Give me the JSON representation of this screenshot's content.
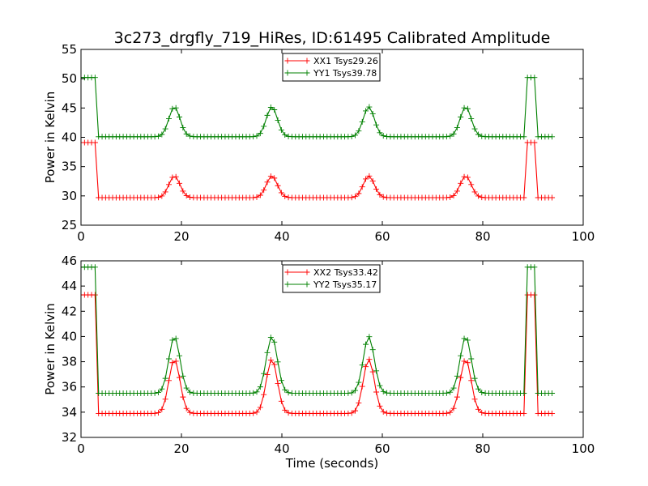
{
  "chart_data": [
    {
      "type": "line",
      "title": "3c273_drgfly_719_HiRes, ID:61495 Calibrated Amplitude",
      "xlabel": "",
      "ylabel": "Power in Kelvin",
      "xlim": [
        0,
        100
      ],
      "ylim": [
        25,
        55
      ],
      "xticks": [
        "0",
        "20",
        "40",
        "60",
        "80",
        "100"
      ],
      "yticks": [
        "25",
        "30",
        "35",
        "40",
        "45",
        "50",
        "55"
      ],
      "legend_position": "top-center",
      "grid": false,
      "series": [
        {
          "name": "XX1 Tsys29.26",
          "color": "#ff0000",
          "marker": "plus",
          "base": 29.7,
          "pulse_peak": 33.4,
          "cal_level": 39.1,
          "sample_step": 0.7,
          "x_range": [
            0,
            94
          ],
          "pulse_centers": [
            18.6,
            38.0,
            57.3,
            76.6
          ],
          "pulse_width": 1.1,
          "cal_on_intervals": [
            [
              0,
              2.8
            ],
            [
              88.3,
              90.7
            ]
          ]
        },
        {
          "name": "YY1 Tsys39.78",
          "color": "#008000",
          "marker": "plus",
          "base": 40.1,
          "pulse_peak": 45.2,
          "cal_level": 50.2,
          "sample_step": 0.7,
          "x_range": [
            0,
            94
          ],
          "pulse_centers": [
            18.6,
            38.0,
            57.3,
            76.6
          ],
          "pulse_width": 1.1,
          "cal_on_intervals": [
            [
              0,
              2.8
            ],
            [
              88.3,
              90.7
            ]
          ]
        }
      ]
    },
    {
      "type": "line",
      "title": "",
      "xlabel": "Time (seconds)",
      "ylabel": "Power in Kelvin",
      "xlim": [
        0,
        100
      ],
      "ylim": [
        32,
        46
      ],
      "xticks": [
        "0",
        "20",
        "40",
        "60",
        "80",
        "100"
      ],
      "yticks": [
        "32",
        "34",
        "36",
        "38",
        "40",
        "42",
        "44",
        "46"
      ],
      "legend_position": "top-center",
      "grid": false,
      "series": [
        {
          "name": "XX2 Tsys33.42",
          "color": "#ff0000",
          "marker": "plus",
          "base": 33.9,
          "pulse_peak": 38.2,
          "cal_level": 43.3,
          "sample_step": 0.7,
          "x_range": [
            0,
            94
          ],
          "pulse_centers": [
            18.6,
            38.0,
            57.3,
            76.6
          ],
          "pulse_width": 1.1,
          "cal_on_intervals": [
            [
              0,
              2.8
            ],
            [
              88.3,
              90.7
            ]
          ]
        },
        {
          "name": "YY2 Tsys35.17",
          "color": "#008000",
          "marker": "plus",
          "base": 35.5,
          "pulse_peak": 40.0,
          "cal_level": 45.5,
          "sample_step": 0.7,
          "x_range": [
            0,
            94
          ],
          "pulse_centers": [
            18.6,
            38.0,
            57.3,
            76.6
          ],
          "pulse_width": 1.1,
          "cal_on_intervals": [
            [
              0,
              2.8
            ],
            [
              88.3,
              90.7
            ]
          ]
        }
      ]
    }
  ]
}
